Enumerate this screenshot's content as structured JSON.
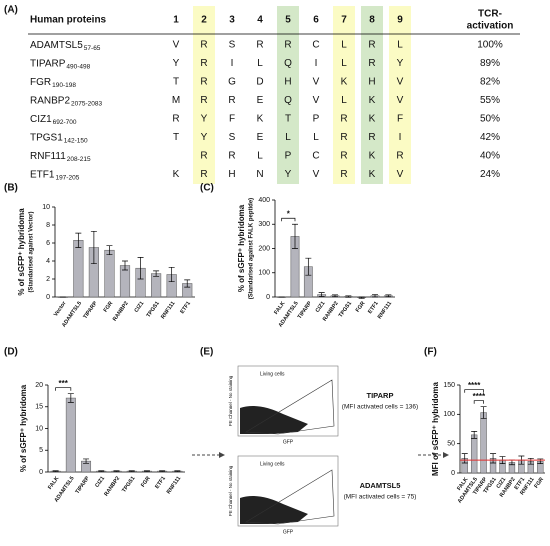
{
  "table": {
    "panel": "(A)",
    "header": {
      "name": "Human proteins",
      "positions": [
        "1",
        "2",
        "3",
        "4",
        "5",
        "6",
        "7",
        "8",
        "9"
      ],
      "activation": [
        "TCR-",
        "activation"
      ]
    },
    "highlight": {
      "yellow": [
        1,
        6,
        8
      ],
      "green": [
        4,
        7
      ]
    },
    "rows": [
      {
        "name": "ADAMTSL5",
        "range": "57-65",
        "residues": [
          "V",
          "R",
          "S",
          "R",
          "R",
          "C",
          "L",
          "R",
          "L"
        ],
        "activation": "100%"
      },
      {
        "name": "TIPARP",
        "range": "490-498",
        "residues": [
          "Y",
          "R",
          "I",
          "L",
          "Q",
          "I",
          "L",
          "R",
          "Y"
        ],
        "activation": "89%"
      },
      {
        "name": "FGR",
        "range": "190-198",
        "residues": [
          "T",
          "R",
          "G",
          "D",
          "H",
          "V",
          "K",
          "H",
          "V"
        ],
        "activation": "82%"
      },
      {
        "name": "RANBP2",
        "range": "2075-2083",
        "residues": [
          "M",
          "R",
          "R",
          "E",
          "Q",
          "V",
          "L",
          "K",
          "V"
        ],
        "activation": "55%"
      },
      {
        "name": "CIZ1",
        "range": "692-700",
        "residues": [
          "R",
          "Y",
          "F",
          "K",
          "T",
          "P",
          "R",
          "K",
          "F"
        ],
        "activation": "50%"
      },
      {
        "name": "TPGS1",
        "range": "142-150",
        "residues": [
          "T",
          "Y",
          "S",
          "E",
          "L",
          "L",
          "R",
          "R",
          "I"
        ],
        "activation": "42%"
      },
      {
        "name": "RNF111",
        "range": "208-215",
        "residues": [
          null,
          "R",
          "R",
          "L",
          "P",
          "C",
          "R",
          "K",
          "R"
        ],
        "activation": "40%"
      },
      {
        "name": "ETF1",
        "range": "197-205",
        "residues": [
          "K",
          "R",
          "H",
          "N",
          "Y",
          "V",
          "R",
          "K",
          "V"
        ],
        "activation": "24%"
      }
    ]
  },
  "chart_data": [
    {
      "type": "bar",
      "panel": "(B)",
      "ylabel": [
        "% of sGFP⁺ hybridoma",
        "(Standarised against Vector)"
      ],
      "color": "#b4b4bc",
      "categories": [
        "Vector",
        "ADAMTSL5",
        "TIPARP",
        "FGR",
        "RANBP2",
        "CIZ1",
        "TPGS1",
        "RNF111",
        "ETF1"
      ],
      "values": [
        0,
        6.3,
        5.5,
        5.2,
        3.5,
        3.2,
        2.6,
        2.5,
        1.5
      ],
      "errors": [
        0,
        0.8,
        1.8,
        0.5,
        0.5,
        1.2,
        0.3,
        0.8,
        0.4
      ],
      "ylim": [
        0,
        10
      ],
      "yticks": [
        0,
        2,
        4,
        6,
        8,
        10
      ]
    },
    {
      "type": "bar",
      "panel": "(C)",
      "ylabel": [
        "% of sGFP⁺ hybridoma",
        "(Standarised against FALK peptide)"
      ],
      "color": "#b4b4bc",
      "categories": [
        "FALK",
        "ADAMTSL5",
        "TIPARP",
        "CIZ1",
        "RANBP2",
        "TPGS1",
        "FGR",
        "ETF1",
        "RNF111"
      ],
      "values": [
        0,
        250,
        125,
        10,
        5,
        2,
        -3,
        5,
        5
      ],
      "errors": [
        0,
        50,
        35,
        8,
        4,
        3,
        3,
        5,
        4
      ],
      "ylim": [
        0,
        400
      ],
      "yticks": [
        0,
        100,
        200,
        300,
        400
      ],
      "significance": [
        {
          "between": [
            "FALK",
            "ADAMTSL5"
          ],
          "label": "*"
        }
      ]
    },
    {
      "type": "bar",
      "panel": "(D)",
      "ylabel": [
        "% of sGFP⁺ hybridoma"
      ],
      "color": "#b4b4bc",
      "categories": [
        "FALK",
        "ADAMTSL5",
        "TIPARP",
        "CIZ1",
        "RANBP2",
        "TPGS1",
        "FGR",
        "ETF1",
        "RNF111"
      ],
      "values": [
        0.2,
        17,
        2.5,
        0.2,
        0.2,
        0.2,
        0.2,
        0.2,
        0.2
      ],
      "errors": [
        0.1,
        1,
        0.5,
        0.1,
        0.1,
        0.1,
        0.1,
        0.1,
        0.1
      ],
      "ylim": [
        0,
        20
      ],
      "yticks": [
        0,
        5,
        10,
        15,
        20
      ],
      "significance": [
        {
          "between": [
            "FALK",
            "ADAMTSL5"
          ],
          "label": "***"
        }
      ]
    },
    {
      "type": "bar",
      "panel": "(F)",
      "ylabel": [
        "MFI of sGFP⁺ hybridoma"
      ],
      "color": "#b4b4bc",
      "categories": [
        "FALK",
        "ADAMTSL5",
        "TIPARP",
        "TPGS1",
        "CIZ1",
        "RANBP2",
        "ETF1",
        "RNF111",
        "FGR"
      ],
      "values": [
        25,
        65,
        103,
        25,
        22,
        18,
        22,
        20,
        20
      ],
      "errors": [
        8,
        6,
        10,
        8,
        6,
        4,
        7,
        5,
        4
      ],
      "ylim": [
        0,
        150
      ],
      "yticks": [
        0,
        50,
        100,
        150
      ],
      "reference_line": {
        "value": 22,
        "color": "#e03030"
      },
      "significance": [
        {
          "between": [
            "ADAMTSL5",
            "TIPARP"
          ],
          "label": "****"
        },
        {
          "between": [
            "FALK",
            "TIPARP"
          ],
          "label": "****"
        }
      ]
    }
  ],
  "flow": {
    "panel": "(E)",
    "plots": [
      {
        "gate": "Living cells",
        "ylabel": "PE Channel - No staining",
        "xlabel": "GFP",
        "sample": "TIPARP",
        "mfi": "(MFI activated cells = 136)"
      },
      {
        "gate": "Living cells",
        "ylabel": "PE Channel - No staining",
        "xlabel": "GFP",
        "sample": "ADAMTSL5",
        "mfi": "(MFI activated cells = 75)"
      }
    ]
  }
}
